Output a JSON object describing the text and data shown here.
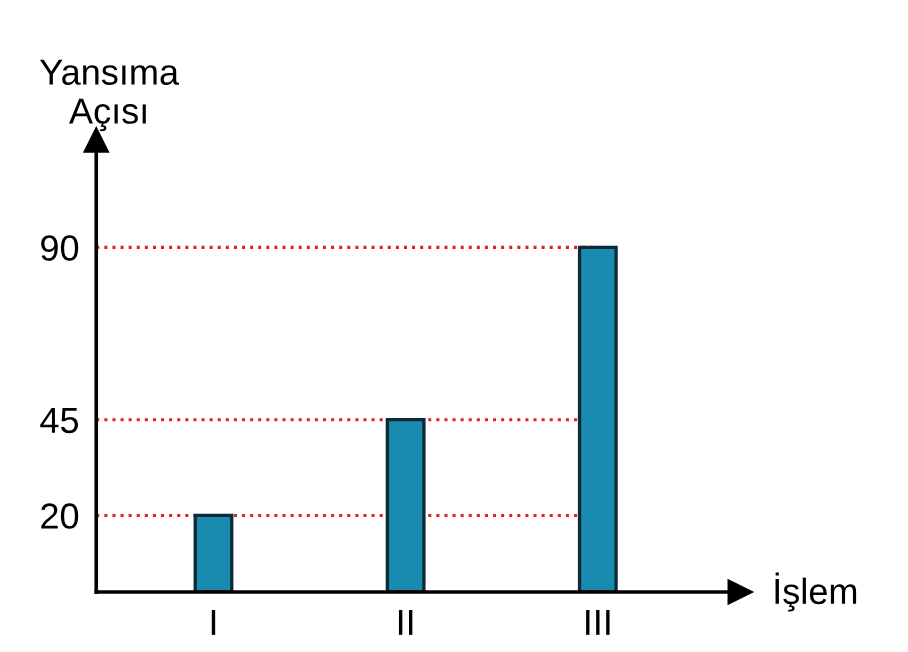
{
  "chart_data": {
    "type": "bar",
    "xlabel": "İşlem",
    "ylabel": "Yansıma\nAçısı",
    "categories": [
      "I",
      "II",
      "III"
    ],
    "values": [
      20,
      45,
      90
    ],
    "color": "#1a8bb0",
    "ylim": [
      0,
      118
    ],
    "yticks": [
      20,
      45,
      90
    ],
    "grid": false,
    "ref_lines": [
      {
        "axis": "y",
        "value": 20,
        "color": "#e0202a",
        "line_style": "dotted"
      },
      {
        "axis": "y",
        "value": 45,
        "color": "#e0202a",
        "line_style": "dotted"
      },
      {
        "axis": "y",
        "value": 90,
        "color": "#e0202a",
        "line_style": "dotted"
      }
    ]
  }
}
